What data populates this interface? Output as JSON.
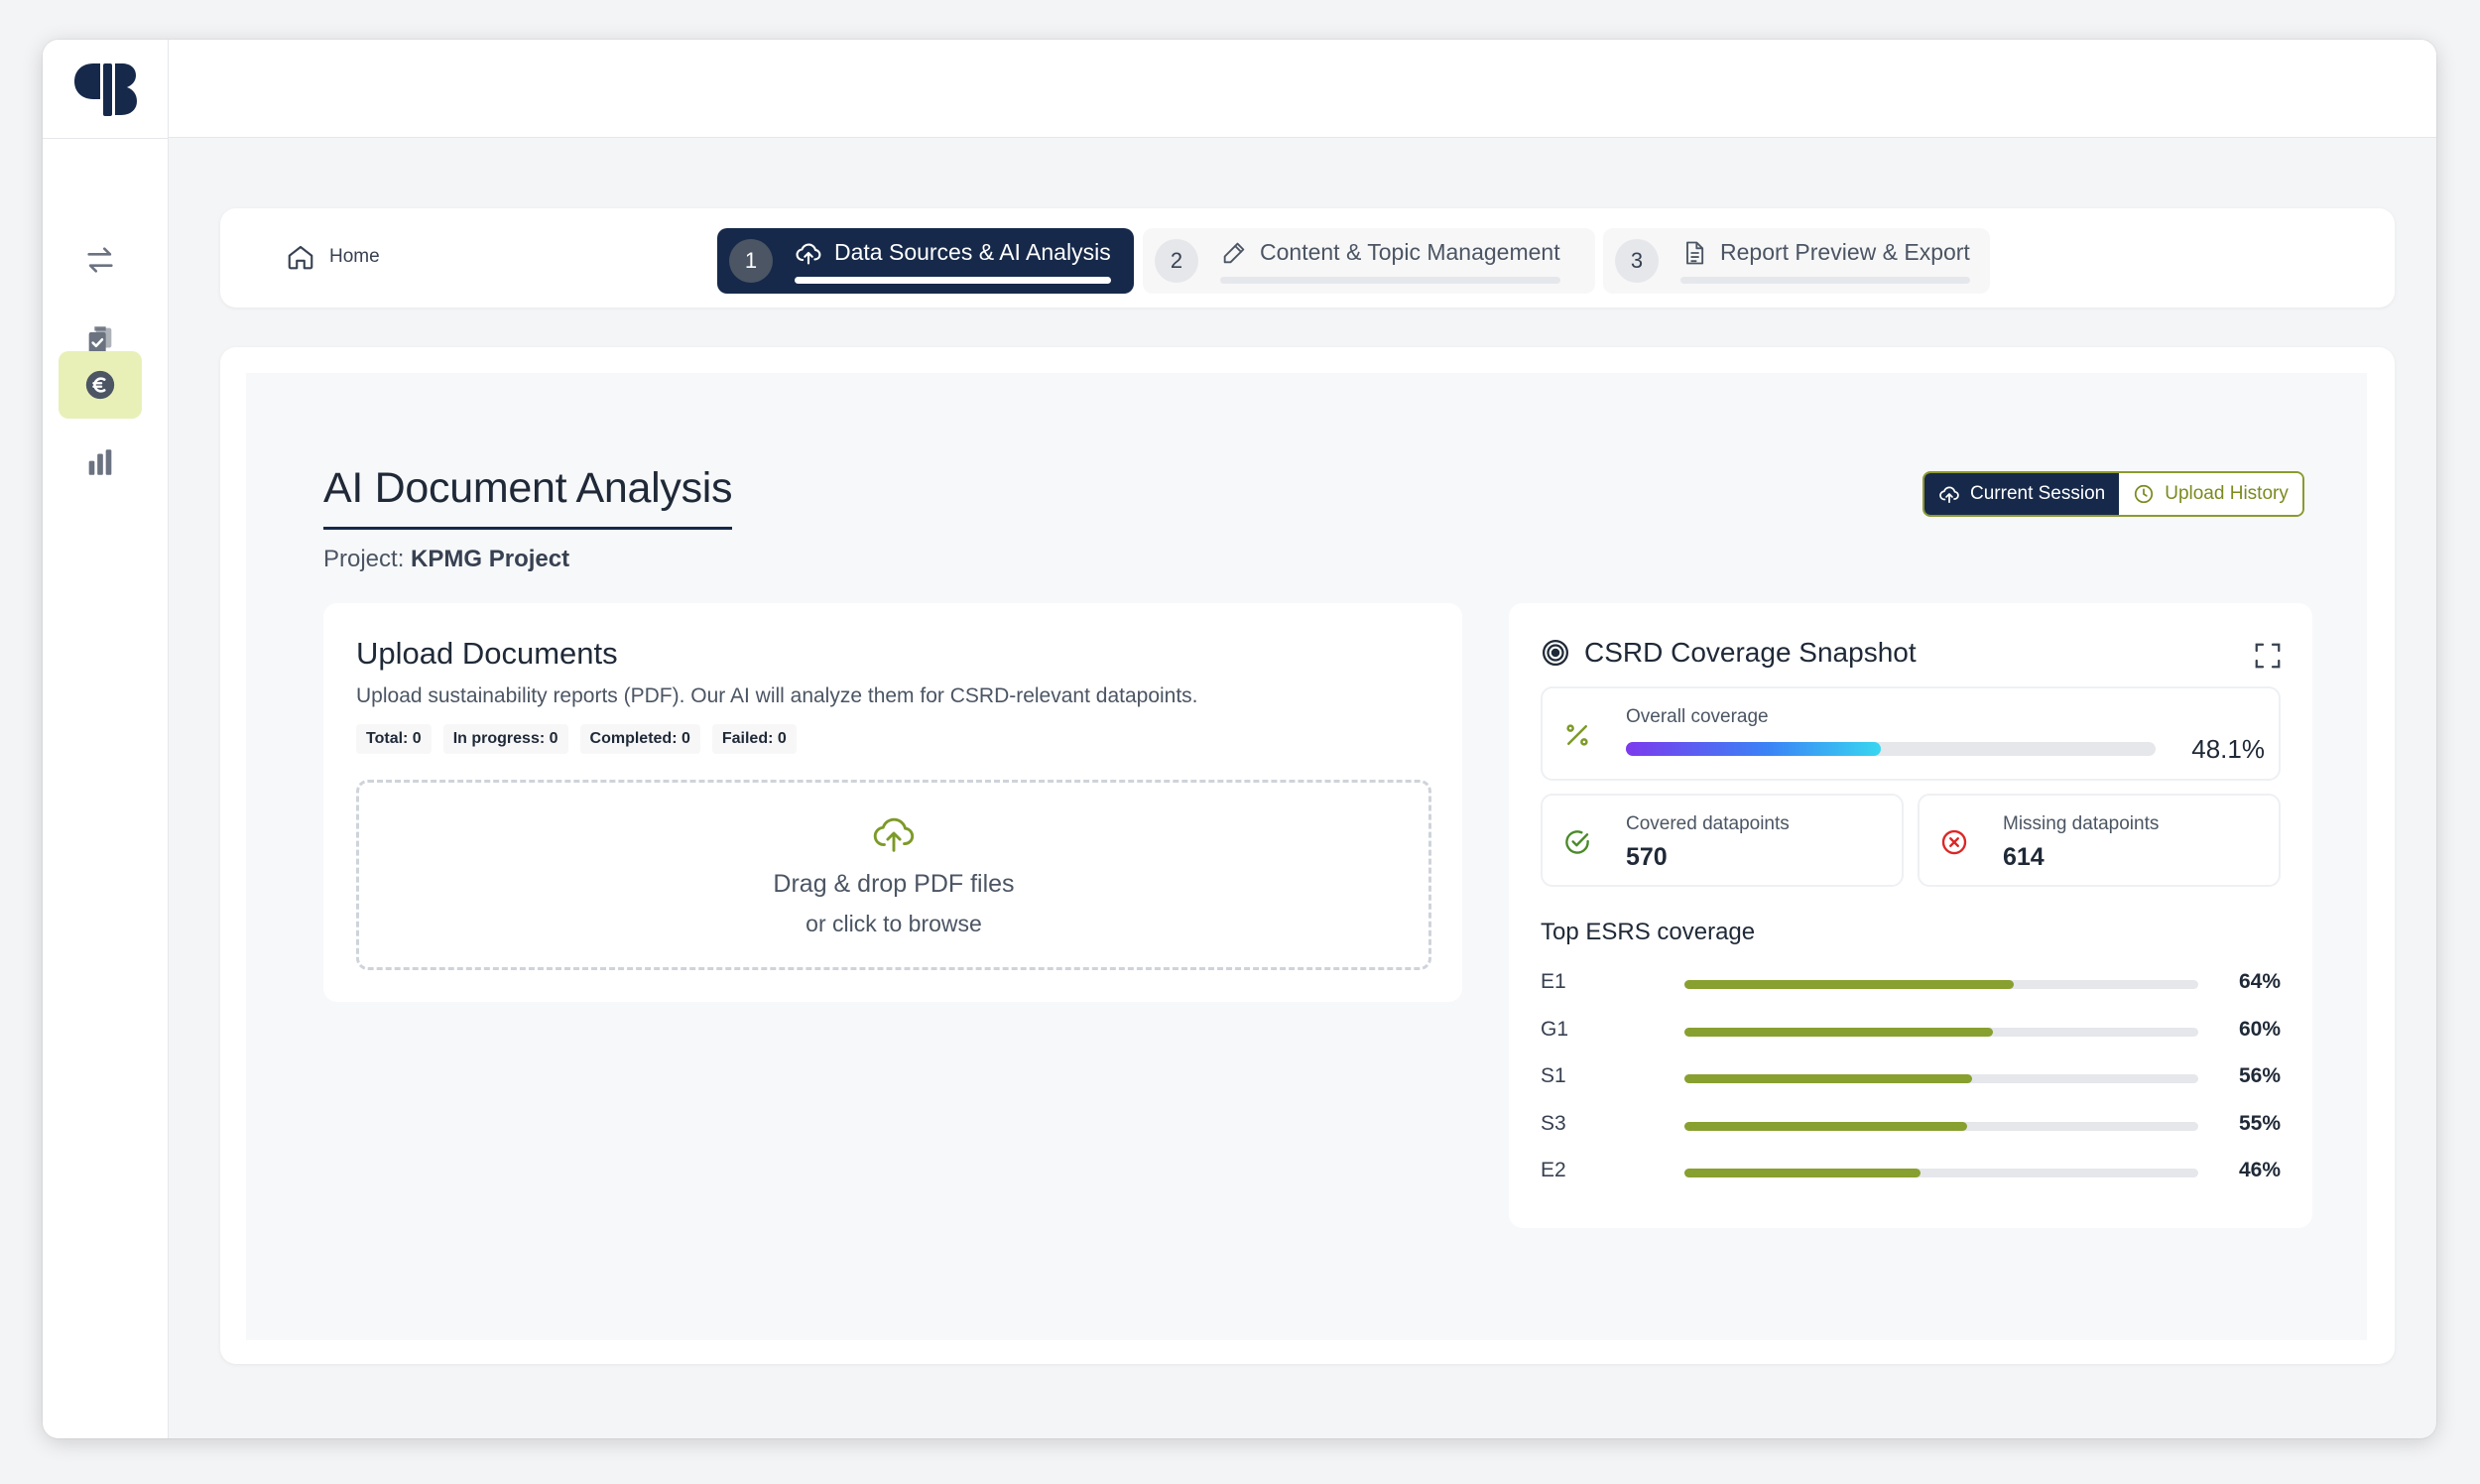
{
  "nav": {
    "items": [
      {
        "icon": "transfer-arrows-icon",
        "active": false
      },
      {
        "icon": "clipboard-check-icon",
        "active": false
      },
      {
        "icon": "euro-coin-icon",
        "active": true
      },
      {
        "icon": "bar-chart-icon",
        "active": false
      }
    ],
    "active_bg": "#e8f0b8"
  },
  "stepper": {
    "home_label": "Home",
    "steps": [
      {
        "number": "1",
        "label": "Data Sources & AI Analysis",
        "icon": "cloud-upload-icon",
        "active": true
      },
      {
        "number": "2",
        "label": "Content & Topic Management",
        "icon": "pencil-icon",
        "active": false
      },
      {
        "number": "3",
        "label": "Report Preview & Export",
        "icon": "document-icon",
        "active": false
      }
    ]
  },
  "page": {
    "title": "AI Document Analysis",
    "project_prefix": "Project:",
    "project_name": "KPMG Project"
  },
  "toggle": {
    "current_label": "Current Session",
    "history_label": "Upload History",
    "selected": "Current Session"
  },
  "upload": {
    "title": "Upload Documents",
    "description": "Upload sustainability reports (PDF). Our AI will analyze them for CSRD-relevant datapoints.",
    "counters": {
      "total": "Total: 0",
      "in_progress": "In progress: 0",
      "completed": "Completed: 0",
      "failed": "Failed: 0"
    },
    "drop_title": "Drag & drop PDF files",
    "drop_sub": "or click to browse"
  },
  "snapshot": {
    "title": "CSRD Coverage Snapshot",
    "overall_label": "Overall coverage",
    "overall_value": 48.1,
    "overall_text": "48.1%",
    "covered_label": "Covered datapoints",
    "covered_value": "570",
    "missing_label": "Missing datapoints",
    "missing_value": "614",
    "esrs_title": "Top ESRS coverage",
    "esrs": [
      {
        "code": "E1",
        "pct": 64,
        "text": "64%"
      },
      {
        "code": "G1",
        "pct": 60,
        "text": "60%"
      },
      {
        "code": "S1",
        "pct": 56,
        "text": "56%"
      },
      {
        "code": "S3",
        "pct": 55,
        "text": "55%"
      },
      {
        "code": "E2",
        "pct": 46,
        "text": "46%"
      }
    ]
  },
  "colors": {
    "navy": "#16294a",
    "olive": "#88a02f",
    "success": "#4a8a2a",
    "danger": "#dc2626"
  }
}
